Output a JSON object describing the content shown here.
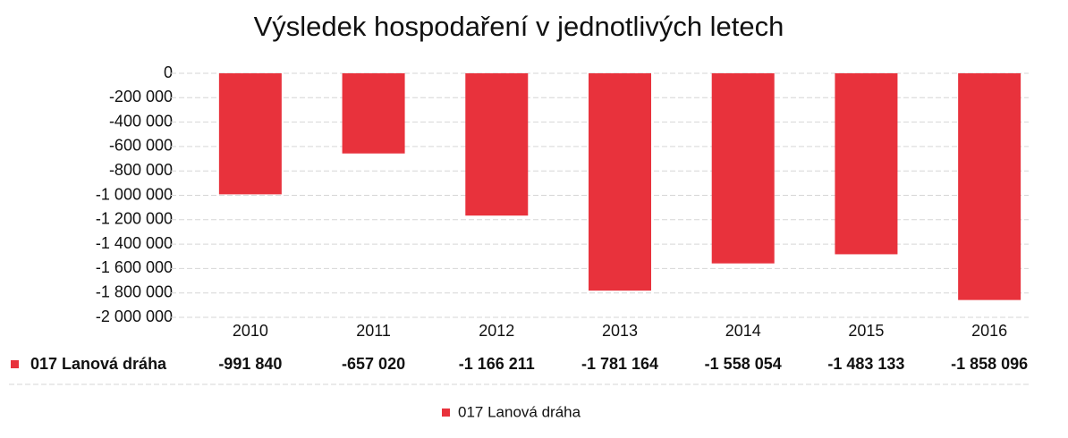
{
  "chart_data": {
    "type": "bar",
    "title": "Výsledek hospodaření v jednotlivých letech",
    "categories": [
      "2010",
      "2011",
      "2012",
      "2013",
      "2014",
      "2015",
      "2016"
    ],
    "series": [
      {
        "name": "017 Lanová dráha",
        "color": "#e8323c",
        "values": [
          -991840,
          -657020,
          -1166211,
          -1781164,
          -1558054,
          -1483133,
          -1858096
        ],
        "value_labels": [
          "-991 840",
          "-657 020",
          "-1 166 211",
          "-1 781 164",
          "-1 558 054",
          "-1 483 133",
          "-1 858 096"
        ]
      }
    ],
    "ylim": [
      -2000000,
      0
    ],
    "yticks": [
      0,
      {
        "value": -200000,
        "label": "-200 000"
      },
      {
        "value": -400000,
        "label": "-400 000"
      },
      {
        "value": -600000,
        "label": "-600 000"
      },
      {
        "value": -800000,
        "label": "-800 000"
      },
      {
        "value": -1000000,
        "label": "-1 000 000"
      },
      {
        "value": -1200000,
        "label": "-1 200 000"
      },
      {
        "value": -1400000,
        "label": "-1 400 000"
      },
      {
        "value": -1600000,
        "label": "-1 600 000"
      },
      {
        "value": -1800000,
        "label": "-1 800 000"
      },
      {
        "value": -2000000,
        "label": "-2 000 000"
      }
    ],
    "grid": true,
    "legend": "bottom"
  }
}
